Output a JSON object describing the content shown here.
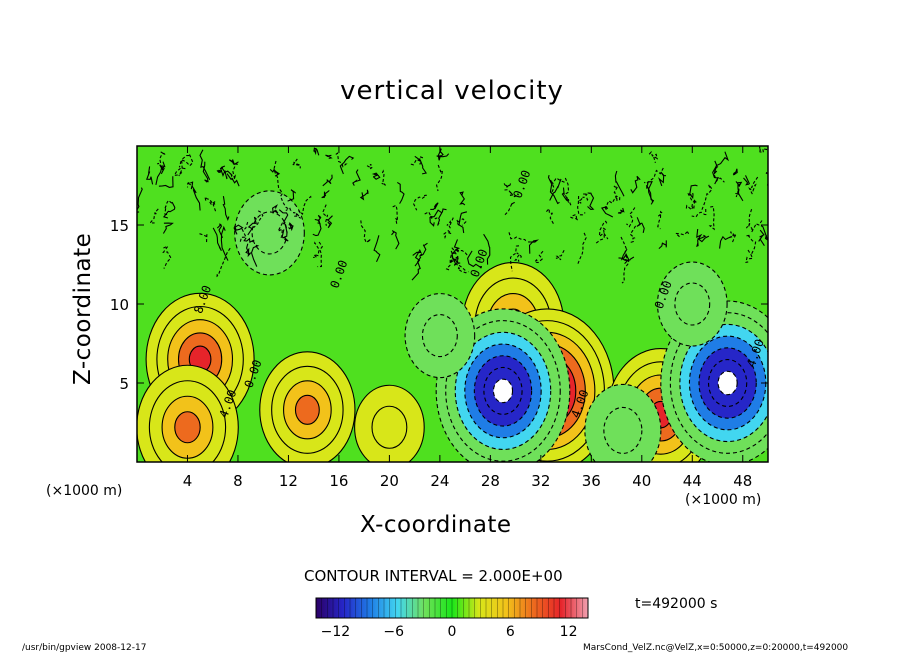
{
  "title": "vertical velocity",
  "contour_interval": "CONTOUR INTERVAL = 2.000E+00",
  "time_label": "t=492000 s",
  "footer": {
    "left": "/usr/bin/gpview   2008-12-17",
    "right": "MarsCond_VelZ.nc@VelZ,x=0:50000,z=0:20000,t=492000"
  },
  "chart_data": {
    "type": "heatmap",
    "title": "vertical velocity",
    "xlabel": "X-coordinate",
    "ylabel": "Z-coordinate",
    "x_unit": "(×1000 m)",
    "xlim": [
      0,
      50
    ],
    "ylim": [
      0,
      20
    ],
    "x_ticks": [
      4,
      8,
      12,
      16,
      20,
      24,
      28,
      32,
      36,
      40,
      44,
      48
    ],
    "y_ticks": [
      5,
      10,
      15
    ],
    "contour_interval": 2.0,
    "contour_labels": [
      {
        "text": "8.00",
        "x": 5.5,
        "z": 10.2
      },
      {
        "text": "4.00",
        "x": 7.5,
        "z": 3.6
      },
      {
        "text": "0.00",
        "x": 9.5,
        "z": 5.5
      },
      {
        "text": "0.00",
        "x": 16.3,
        "z": 11.8
      },
      {
        "text": "0.00",
        "x": 27.4,
        "z": 12.5
      },
      {
        "text": "0.00",
        "x": 30.8,
        "z": 17.5
      },
      {
        "text": "4.00",
        "x": 35.4,
        "z": 3.6
      },
      {
        "text": "0.00",
        "x": 42.0,
        "z": 10.5
      },
      {
        "text": "4.00",
        "x": 49.3,
        "z": 6.8
      }
    ],
    "colorbar": {
      "min": -14,
      "max": 14,
      "ticks": [
        -12,
        -6,
        0,
        6,
        12
      ],
      "colors": [
        "#2b0066",
        "#2626c8",
        "#1f7de6",
        "#42d6f0",
        "#6fe05a",
        "#19e619",
        "#d8e619",
        "#f2c21a",
        "#ed6a1e",
        "#e6242a",
        "#f0a0b0"
      ]
    },
    "features": [
      {
        "type": "updraft",
        "x": 5.0,
        "z": 6.5,
        "peak": 10
      },
      {
        "type": "updraft",
        "x": 4.0,
        "z": 2.2,
        "peak": 9
      },
      {
        "type": "updraft",
        "x": 13.5,
        "z": 3.3,
        "peak": 8
      },
      {
        "type": "updraft",
        "x": 20.0,
        "z": 2.2,
        "peak": 4
      },
      {
        "type": "updraft",
        "x": 29.8,
        "z": 8.7,
        "peak": 9
      },
      {
        "type": "updraft",
        "x": 32.5,
        "z": 4.5,
        "peak": 14
      },
      {
        "type": "updraft",
        "x": 41.5,
        "z": 3.0,
        "peak": 10
      },
      {
        "type": "downdraft",
        "x": 29.0,
        "z": 4.5,
        "peak": -14
      },
      {
        "type": "downdraft",
        "x": 38.5,
        "z": 2.0,
        "peak": -5
      },
      {
        "type": "downdraft",
        "x": 46.8,
        "z": 5.0,
        "peak": -14
      },
      {
        "type": "downdraft",
        "x": 10.5,
        "z": 14.5,
        "peak": -4
      },
      {
        "type": "downdraft",
        "x": 24.0,
        "z": 8.0,
        "peak": -4
      },
      {
        "type": "downdraft",
        "x": 44.0,
        "z": 10.0,
        "peak": -4
      }
    ],
    "grid": false
  }
}
